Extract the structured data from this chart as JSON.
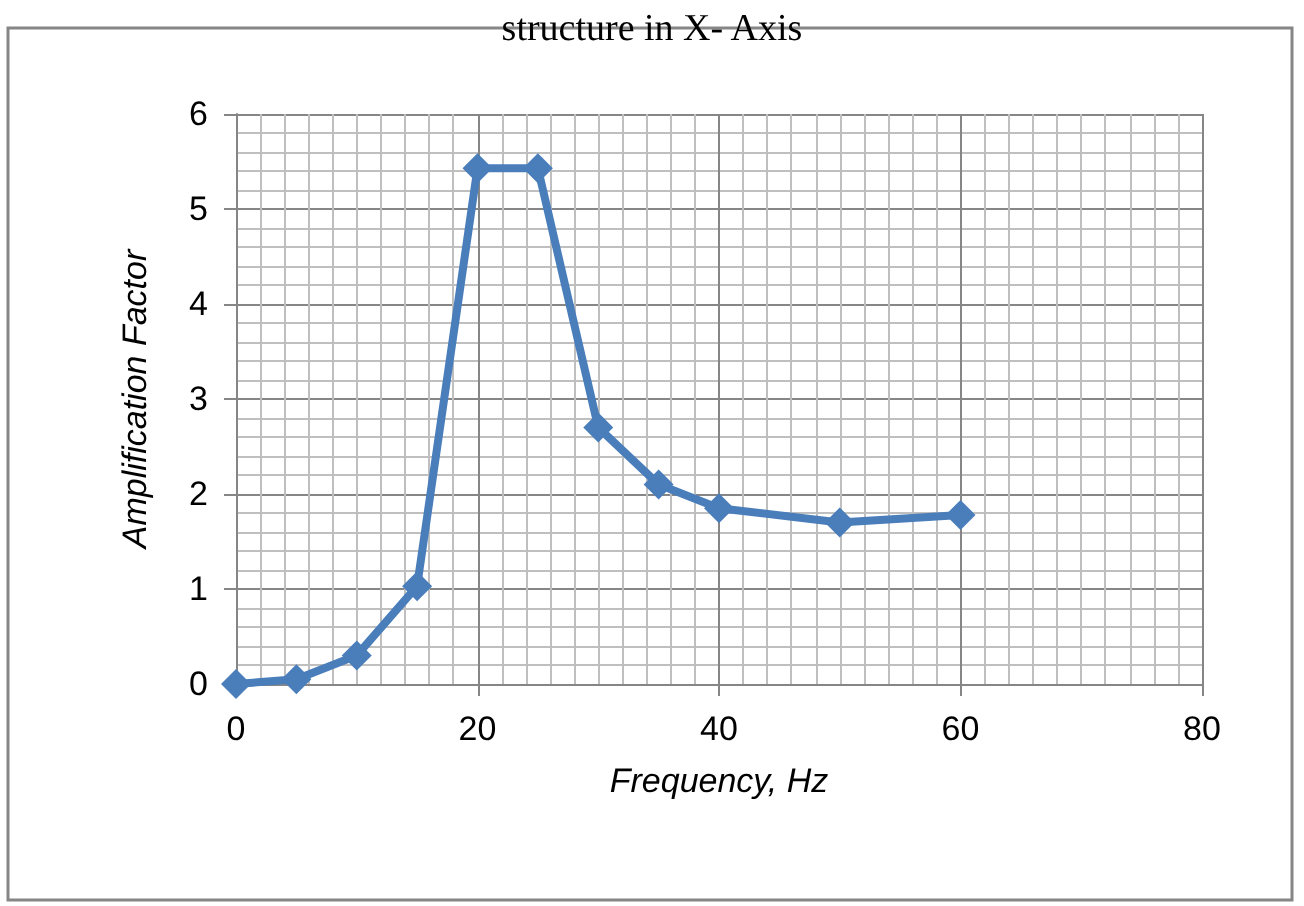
{
  "chart_data": {
    "type": "line",
    "title": "structure in X- Axis",
    "xlabel": "Frequency, Hz",
    "ylabel": "Amplification Factor",
    "x": [
      0,
      5,
      10,
      15,
      20,
      25,
      30,
      35,
      40,
      50,
      60
    ],
    "series": [
      {
        "color": "#4a7ebb",
        "values": [
          0,
          0.05,
          0.3,
          1.03,
          5.43,
          5.43,
          2.7,
          2.1,
          1.85,
          1.7,
          1.78
        ]
      }
    ],
    "xlim": [
      0,
      80
    ],
    "xticks": [
      0,
      20,
      40,
      60,
      80
    ],
    "ylim": [
      0,
      6
    ],
    "yticks": [
      0,
      1,
      2,
      3,
      4,
      5,
      6
    ],
    "grid": true,
    "marker": "diamond",
    "line_style": "solid"
  }
}
